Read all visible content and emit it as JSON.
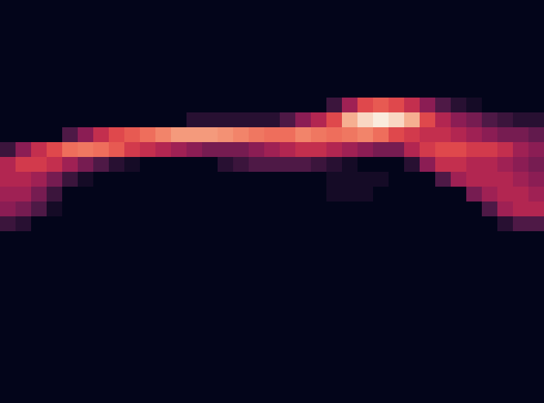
{
  "chart_data": {
    "type": "heatmap",
    "tick_labels": false,
    "zlim": [
      0,
      1
    ],
    "z": [
      [
        0,
        0,
        0,
        0,
        0,
        0,
        0,
        0,
        0,
        0,
        0,
        0,
        0,
        0,
        0,
        0,
        0,
        0,
        0,
        0,
        0,
        0,
        0,
        0,
        0,
        0,
        0,
        0,
        0,
        0,
        0,
        0,
        0,
        0,
        0
      ],
      [
        0,
        0,
        0,
        0,
        0,
        0,
        0,
        0,
        0,
        0,
        0,
        0,
        0,
        0,
        0,
        0,
        0,
        0,
        0,
        0,
        0,
        0,
        0,
        0,
        0,
        0,
        0,
        0,
        0,
        0,
        0,
        0,
        0,
        0,
        0
      ],
      [
        0,
        0,
        0,
        0,
        0,
        0,
        0,
        0,
        0,
        0,
        0,
        0,
        0,
        0,
        0,
        0,
        0,
        0,
        0,
        0,
        0,
        0,
        0,
        0,
        0,
        0,
        0,
        0,
        0,
        0,
        0,
        0,
        0,
        0,
        0
      ],
      [
        0,
        0,
        0,
        0,
        0,
        0,
        0,
        0,
        0,
        0,
        0,
        0,
        0,
        0,
        0,
        0,
        0,
        0,
        0,
        0,
        0,
        0,
        0,
        0,
        0,
        0,
        0,
        0,
        0,
        0,
        0,
        0,
        0,
        0,
        0
      ],
      [
        0,
        0,
        0,
        0,
        0,
        0,
        0,
        0,
        0,
        0,
        0,
        0,
        0,
        0,
        0,
        0,
        0,
        0,
        0,
        0,
        0,
        0,
        0,
        0,
        0,
        0,
        0,
        0,
        0,
        0,
        0,
        0,
        0,
        0,
        0
      ],
      [
        0,
        0,
        0,
        0,
        0,
        0,
        0,
        0,
        0,
        0,
        0,
        0,
        0,
        0,
        0,
        0,
        0,
        0,
        0,
        0,
        0,
        0,
        0,
        0,
        0,
        0,
        0,
        0,
        0,
        0,
        0,
        0,
        0,
        0,
        0
      ],
      [
        0,
        0,
        0,
        0,
        0,
        0,
        0,
        0,
        0,
        0,
        0,
        0,
        0,
        0,
        0,
        0,
        0,
        0,
        0,
        0,
        0,
        0.15,
        0.4,
        0.6,
        0.65,
        0.6,
        0.5,
        0.35,
        0.2,
        0.1,
        0.05,
        0,
        0,
        0,
        0
      ],
      [
        0,
        0,
        0,
        0,
        0,
        0,
        0,
        0,
        0,
        0,
        0,
        0,
        0.1,
        0.1,
        0.1,
        0.1,
        0.1,
        0.1,
        0.2,
        0.35,
        0.45,
        0.6,
        0.85,
        0.95,
        1,
        0.95,
        0.85,
        0.6,
        0.45,
        0.35,
        0.3,
        0.2,
        0.15,
        0.1,
        0.1
      ],
      [
        0,
        0,
        0,
        0,
        0.2,
        0.35,
        0.5,
        0.6,
        0.65,
        0.7,
        0.75,
        0.8,
        0.8,
        0.8,
        0.78,
        0.75,
        0.72,
        0.7,
        0.7,
        0.75,
        0.72,
        0.7,
        0.72,
        0.75,
        0.7,
        0.6,
        0.55,
        0.5,
        0.5,
        0.45,
        0.4,
        0.35,
        0.3,
        0.3,
        0.25
      ],
      [
        0.15,
        0.35,
        0.5,
        0.6,
        0.7,
        0.72,
        0.7,
        0.65,
        0.55,
        0.5,
        0.45,
        0.4,
        0.35,
        0.3,
        0.3,
        0.3,
        0.35,
        0.4,
        0.45,
        0.5,
        0.5,
        0.45,
        0.4,
        0.35,
        0.3,
        0.3,
        0.45,
        0.55,
        0.6,
        0.6,
        0.55,
        0.55,
        0.5,
        0.4,
        0.35
      ],
      [
        0.45,
        0.55,
        0.55,
        0.5,
        0.4,
        0.3,
        0.2,
        0.1,
        0.05,
        0,
        0,
        0,
        0,
        0,
        0.1,
        0.15,
        0.2,
        0.2,
        0.2,
        0.2,
        0.15,
        0.1,
        0.05,
        0,
        0,
        0,
        0.1,
        0.35,
        0.5,
        0.5,
        0.45,
        0.45,
        0.4,
        0.35,
        0.3
      ],
      [
        0.45,
        0.45,
        0.4,
        0.3,
        0.15,
        0.05,
        0,
        0,
        0,
        0,
        0,
        0,
        0,
        0,
        0,
        0,
        0,
        0,
        0,
        0,
        0,
        0.05,
        0.05,
        0.05,
        0.05,
        0,
        0,
        0,
        0.2,
        0.4,
        0.45,
        0.45,
        0.45,
        0.4,
        0.35
      ],
      [
        0.4,
        0.4,
        0.3,
        0.15,
        0,
        0,
        0,
        0,
        0,
        0,
        0,
        0,
        0,
        0,
        0,
        0,
        0,
        0,
        0,
        0,
        0,
        0.05,
        0.05,
        0.05,
        0,
        0,
        0,
        0,
        0,
        0,
        0.3,
        0.4,
        0.45,
        0.45,
        0.4
      ],
      [
        0.35,
        0.3,
        0.2,
        0.05,
        0,
        0,
        0,
        0,
        0,
        0,
        0,
        0,
        0,
        0,
        0,
        0,
        0,
        0,
        0,
        0,
        0,
        0,
        0,
        0,
        0,
        0,
        0,
        0,
        0,
        0,
        0,
        0.2,
        0.4,
        0.45,
        0.45
      ],
      [
        0.15,
        0.1,
        0,
        0,
        0,
        0,
        0,
        0,
        0,
        0,
        0,
        0,
        0,
        0,
        0,
        0,
        0,
        0,
        0,
        0,
        0,
        0,
        0,
        0,
        0,
        0,
        0,
        0,
        0,
        0,
        0,
        0,
        0.1,
        0.2,
        0.2
      ],
      [
        0,
        0,
        0,
        0,
        0,
        0,
        0,
        0,
        0,
        0,
        0,
        0,
        0,
        0,
        0,
        0,
        0,
        0,
        0,
        0,
        0,
        0,
        0,
        0,
        0,
        0,
        0,
        0,
        0,
        0,
        0,
        0,
        0,
        0,
        0
      ],
      [
        0,
        0,
        0,
        0,
        0,
        0,
        0,
        0,
        0,
        0,
        0,
        0,
        0,
        0,
        0,
        0,
        0,
        0,
        0,
        0,
        0,
        0,
        0,
        0,
        0,
        0,
        0,
        0,
        0,
        0,
        0,
        0,
        0,
        0,
        0
      ],
      [
        0,
        0,
        0,
        0,
        0,
        0,
        0,
        0,
        0,
        0,
        0,
        0,
        0,
        0,
        0,
        0,
        0,
        0,
        0,
        0,
        0,
        0,
        0,
        0,
        0,
        0,
        0,
        0,
        0,
        0,
        0,
        0,
        0,
        0,
        0
      ],
      [
        0,
        0,
        0,
        0,
        0,
        0,
        0,
        0,
        0,
        0,
        0,
        0,
        0,
        0,
        0,
        0,
        0,
        0,
        0,
        0,
        0,
        0,
        0,
        0,
        0,
        0,
        0,
        0,
        0,
        0,
        0,
        0,
        0,
        0,
        0
      ],
      [
        0,
        0,
        0,
        0,
        0,
        0,
        0,
        0,
        0,
        0,
        0,
        0,
        0,
        0,
        0,
        0,
        0,
        0,
        0,
        0,
        0,
        0,
        0,
        0,
        0,
        0,
        0,
        0,
        0,
        0,
        0,
        0,
        0,
        0,
        0
      ],
      [
        0,
        0,
        0,
        0,
        0,
        0,
        0,
        0,
        0,
        0,
        0,
        0,
        0,
        0,
        0,
        0,
        0,
        0,
        0,
        0,
        0,
        0,
        0,
        0,
        0,
        0,
        0,
        0,
        0,
        0,
        0,
        0,
        0,
        0,
        0
      ],
      [
        0,
        0,
        0,
        0,
        0,
        0,
        0,
        0,
        0,
        0,
        0,
        0,
        0,
        0,
        0,
        0,
        0,
        0,
        0,
        0,
        0,
        0,
        0,
        0,
        0,
        0,
        0,
        0,
        0,
        0,
        0,
        0,
        0,
        0,
        0
      ],
      [
        0,
        0,
        0,
        0,
        0,
        0,
        0,
        0,
        0,
        0,
        0,
        0,
        0,
        0,
        0,
        0,
        0,
        0,
        0,
        0,
        0,
        0,
        0,
        0,
        0,
        0,
        0,
        0,
        0,
        0,
        0,
        0,
        0,
        0,
        0
      ],
      [
        0,
        0,
        0,
        0,
        0,
        0,
        0,
        0,
        0,
        0,
        0,
        0,
        0,
        0,
        0,
        0,
        0,
        0,
        0,
        0,
        0,
        0,
        0,
        0,
        0,
        0,
        0,
        0,
        0,
        0,
        0,
        0,
        0,
        0,
        0
      ],
      [
        0,
        0,
        0,
        0,
        0,
        0,
        0,
        0,
        0,
        0,
        0,
        0,
        0,
        0,
        0,
        0,
        0,
        0,
        0,
        0,
        0,
        0,
        0,
        0,
        0,
        0,
        0,
        0,
        0,
        0,
        0,
        0,
        0,
        0,
        0
      ],
      [
        0,
        0,
        0,
        0,
        0,
        0,
        0,
        0,
        0,
        0,
        0,
        0,
        0,
        0,
        0,
        0,
        0,
        0,
        0,
        0,
        0,
        0,
        0,
        0,
        0,
        0,
        0,
        0,
        0,
        0,
        0,
        0,
        0,
        0,
        0
      ]
    ]
  }
}
